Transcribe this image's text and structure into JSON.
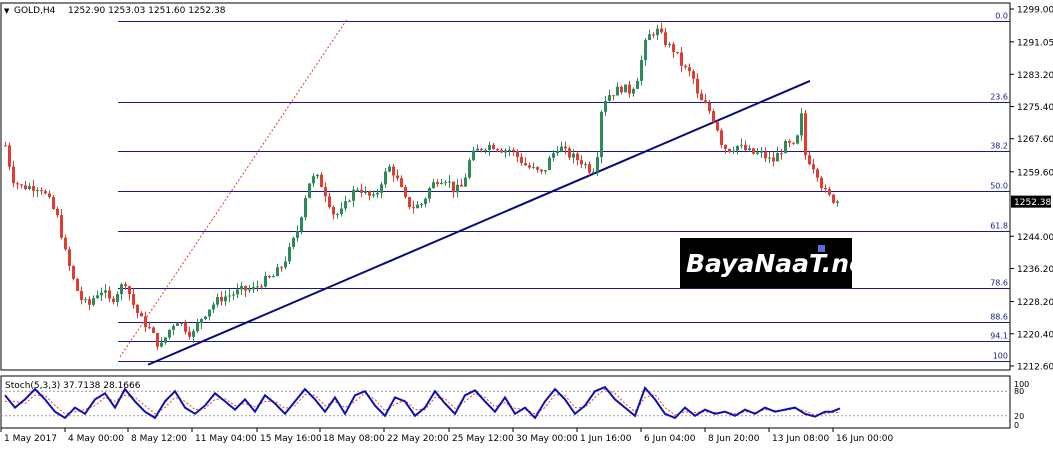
{
  "header": {
    "symbol": "GOLD,H4",
    "ohlc": "1252.90 1253.03 1251.60 1252.38"
  },
  "indicator": {
    "label": "Stoch(5,3,3) 37.7138 28.1666",
    "levels": [
      "100",
      "80",
      "20",
      "0"
    ]
  },
  "price_axis": {
    "ticks": [
      "1299.00",
      "1291.05",
      "1283.20",
      "1275.40",
      "1267.60",
      "1259.60",
      "1252.38",
      "1244.00",
      "1236.20",
      "1228.20",
      "1220.40",
      "1212.60"
    ],
    "current_price": "1252.38"
  },
  "time_axis": {
    "ticks": [
      "1 May 2017",
      "4 May 00:00",
      "8 May 12:00",
      "11 May 04:00",
      "15 May 16:00",
      "18 May 08:00",
      "22 May 20:00",
      "25 May 12:00",
      "30 May 00:00",
      "1 Jun 16:00",
      "6 Jun 04:00",
      "8 Jun 20:00",
      "13 Jun 08:00",
      "16 Jun 00:00"
    ]
  },
  "watermark": "BayaNaaT.net",
  "colors": {
    "bull": "#2e8b57",
    "bear": "#e03c31",
    "fib": "#1a1a8c",
    "trend": "#0a0a7a",
    "stoch_main": "#1010b0",
    "stoch_signal": "#e03c31"
  },
  "chart_data": {
    "type": "candlestick",
    "symbol": "GOLD",
    "timeframe": "H4",
    "fibonacci_levels": [
      {
        "label": "0.0",
        "price": 1296.0
      },
      {
        "label": "23.6",
        "price": 1276.6
      },
      {
        "label": "38.2",
        "price": 1264.6
      },
      {
        "label": "50.0",
        "price": 1254.9
      },
      {
        "label": "61.8",
        "price": 1245.2
      },
      {
        "label": "78.6",
        "price": 1231.4
      },
      {
        "label": "88.6",
        "price": 1223.2
      },
      {
        "label": "94.1",
        "price": 1218.7
      },
      {
        "label": "100",
        "price": 1213.8
      }
    ],
    "trendlines": [
      {
        "kind": "support",
        "from": [
          148,
          1212.9
        ],
        "to": [
          810,
          1281.6
        ]
      },
      {
        "kind": "projection",
        "style": "dashed",
        "from": [
          120,
          1214.8
        ],
        "to": [
          347,
          1296.5
        ]
      }
    ],
    "price_anchors": [
      1299.0,
      1212.6
    ],
    "close_path": [
      [
        5,
        1266
      ],
      [
        12,
        1258
      ],
      [
        20,
        1256
      ],
      [
        30,
        1256
      ],
      [
        40,
        1256
      ],
      [
        50,
        1252
      ],
      [
        58,
        1248
      ],
      [
        65,
        1240
      ],
      [
        72,
        1234
      ],
      [
        80,
        1229
      ],
      [
        88,
        1227
      ],
      [
        95,
        1230
      ],
      [
        102,
        1231
      ],
      [
        110,
        1228
      ],
      [
        118,
        1231
      ],
      [
        125,
        1233
      ],
      [
        132,
        1228
      ],
      [
        140,
        1224
      ],
      [
        148,
        1222
      ],
      [
        155,
        1219
      ],
      [
        160,
        1217
      ],
      [
        168,
        1221
      ],
      [
        176,
        1224
      ],
      [
        184,
        1222
      ],
      [
        192,
        1220
      ],
      [
        200,
        1224
      ],
      [
        210,
        1227
      ],
      [
        220,
        1229
      ],
      [
        232,
        1230
      ],
      [
        242,
        1231
      ],
      [
        252,
        1231
      ],
      [
        262,
        1233
      ],
      [
        272,
        1234
      ],
      [
        282,
        1237
      ],
      [
        290,
        1241
      ],
      [
        298,
        1246
      ],
      [
        304,
        1253
      ],
      [
        310,
        1258
      ],
      [
        318,
        1258
      ],
      [
        326,
        1254
      ],
      [
        334,
        1249
      ],
      [
        342,
        1250
      ],
      [
        350,
        1254
      ],
      [
        358,
        1256
      ],
      [
        366,
        1254
      ],
      [
        374,
        1253
      ],
      [
        382,
        1258
      ],
      [
        390,
        1261
      ],
      [
        398,
        1257
      ],
      [
        406,
        1252
      ],
      [
        414,
        1251
      ],
      [
        422,
        1252
      ],
      [
        430,
        1256
      ],
      [
        438,
        1258
      ],
      [
        446,
        1258
      ],
      [
        454,
        1255
      ],
      [
        462,
        1256
      ],
      [
        470,
        1263
      ],
      [
        478,
        1265
      ],
      [
        486,
        1266
      ],
      [
        494,
        1266
      ],
      [
        502,
        1265
      ],
      [
        510,
        1265
      ],
      [
        518,
        1263
      ],
      [
        526,
        1261
      ],
      [
        534,
        1260
      ],
      [
        542,
        1259
      ],
      [
        550,
        1263
      ],
      [
        558,
        1266
      ],
      [
        566,
        1264
      ],
      [
        574,
        1263
      ],
      [
        582,
        1262
      ],
      [
        590,
        1260
      ],
      [
        596,
        1261
      ],
      [
        600,
        1274
      ],
      [
        606,
        1278
      ],
      [
        614,
        1279
      ],
      [
        622,
        1280
      ],
      [
        630,
        1279
      ],
      [
        638,
        1283
      ],
      [
        644,
        1290
      ],
      [
        650,
        1293
      ],
      [
        656,
        1294
      ],
      [
        662,
        1292
      ],
      [
        668,
        1290
      ],
      [
        674,
        1289
      ],
      [
        680,
        1286
      ],
      [
        686,
        1284
      ],
      [
        692,
        1283
      ],
      [
        698,
        1277
      ],
      [
        704,
        1276
      ],
      [
        710,
        1274
      ],
      [
        716,
        1271
      ],
      [
        722,
        1266
      ],
      [
        728,
        1265
      ],
      [
        736,
        1266
      ],
      [
        744,
        1265
      ],
      [
        752,
        1264
      ],
      [
        760,
        1264
      ],
      [
        766,
        1263
      ],
      [
        772,
        1262
      ],
      [
        778,
        1264
      ],
      [
        784,
        1266
      ],
      [
        790,
        1266
      ],
      [
        796,
        1265
      ],
      [
        800,
        1276
      ],
      [
        804,
        1264
      ],
      [
        810,
        1262
      ],
      [
        816,
        1260
      ],
      [
        820,
        1257
      ],
      [
        826,
        1254
      ],
      [
        832,
        1253
      ],
      [
        840,
        1252.4
      ]
    ],
    "stochastic": {
      "params": "5,3,3",
      "main": 37.7138,
      "signal": 28.1666,
      "levels": [
        20,
        80
      ],
      "range": [
        0,
        100
      ],
      "main_path": [
        [
          5,
          70
        ],
        [
          15,
          40
        ],
        [
          25,
          60
        ],
        [
          35,
          85
        ],
        [
          45,
          60
        ],
        [
          55,
          30
        ],
        [
          65,
          15
        ],
        [
          75,
          40
        ],
        [
          85,
          25
        ],
        [
          95,
          60
        ],
        [
          105,
          75
        ],
        [
          115,
          40
        ],
        [
          125,
          85
        ],
        [
          135,
          55
        ],
        [
          145,
          30
        ],
        [
          155,
          15
        ],
        [
          165,
          55
        ],
        [
          175,
          80
        ],
        [
          185,
          40
        ],
        [
          195,
          25
        ],
        [
          205,
          45
        ],
        [
          215,
          75
        ],
        [
          225,
          55
        ],
        [
          235,
          35
        ],
        [
          245,
          60
        ],
        [
          255,
          30
        ],
        [
          265,
          70
        ],
        [
          275,
          50
        ],
        [
          285,
          25
        ],
        [
          295,
          55
        ],
        [
          305,
          85
        ],
        [
          315,
          60
        ],
        [
          325,
          30
        ],
        [
          335,
          65
        ],
        [
          345,
          25
        ],
        [
          355,
          70
        ],
        [
          365,
          80
        ],
        [
          375,
          45
        ],
        [
          385,
          20
        ],
        [
          395,
          65
        ],
        [
          405,
          55
        ],
        [
          415,
          20
        ],
        [
          425,
          40
        ],
        [
          435,
          80
        ],
        [
          445,
          50
        ],
        [
          455,
          25
        ],
        [
          465,
          70
        ],
        [
          475,
          82
        ],
        [
          485,
          55
        ],
        [
          495,
          30
        ],
        [
          505,
          65
        ],
        [
          515,
          25
        ],
        [
          525,
          40
        ],
        [
          535,
          15
        ],
        [
          545,
          55
        ],
        [
          555,
          85
        ],
        [
          565,
          60
        ],
        [
          575,
          25
        ],
        [
          585,
          45
        ],
        [
          595,
          80
        ],
        [
          605,
          90
        ],
        [
          615,
          60
        ],
        [
          625,
          40
        ],
        [
          635,
          20
        ],
        [
          645,
          88
        ],
        [
          655,
          60
        ],
        [
          665,
          25
        ],
        [
          675,
          15
        ],
        [
          685,
          40
        ],
        [
          695,
          20
        ],
        [
          705,
          35
        ],
        [
          715,
          25
        ],
        [
          725,
          30
        ],
        [
          735,
          20
        ],
        [
          745,
          35
        ],
        [
          755,
          25
        ],
        [
          765,
          40
        ],
        [
          775,
          30
        ],
        [
          785,
          35
        ],
        [
          795,
          40
        ],
        [
          805,
          25
        ],
        [
          815,
          18
        ],
        [
          825,
          30
        ],
        [
          832,
          30
        ],
        [
          840,
          38
        ]
      ],
      "signal_path": [
        [
          5,
          55
        ],
        [
          15,
          55
        ],
        [
          25,
          50
        ],
        [
          35,
          70
        ],
        [
          45,
          70
        ],
        [
          55,
          45
        ],
        [
          65,
          25
        ],
        [
          75,
          30
        ],
        [
          85,
          35
        ],
        [
          95,
          45
        ],
        [
          105,
          65
        ],
        [
          115,
          55
        ],
        [
          125,
          70
        ],
        [
          135,
          65
        ],
        [
          145,
          45
        ],
        [
          155,
          25
        ],
        [
          165,
          40
        ],
        [
          175,
          65
        ],
        [
          185,
          55
        ],
        [
          195,
          35
        ],
        [
          205,
          38
        ],
        [
          215,
          60
        ],
        [
          225,
          62
        ],
        [
          235,
          45
        ],
        [
          245,
          50
        ],
        [
          255,
          42
        ],
        [
          265,
          55
        ],
        [
          275,
          55
        ],
        [
          285,
          38
        ],
        [
          295,
          45
        ],
        [
          305,
          72
        ],
        [
          315,
          70
        ],
        [
          325,
          45
        ],
        [
          335,
          55
        ],
        [
          345,
          40
        ],
        [
          355,
          55
        ],
        [
          365,
          75
        ],
        [
          375,
          60
        ],
        [
          385,
          32
        ],
        [
          395,
          48
        ],
        [
          405,
          58
        ],
        [
          415,
          35
        ],
        [
          425,
          35
        ],
        [
          435,
          65
        ],
        [
          445,
          62
        ],
        [
          455,
          38
        ],
        [
          465,
          55
        ],
        [
          475,
          75
        ],
        [
          485,
          65
        ],
        [
          495,
          42
        ],
        [
          505,
          52
        ],
        [
          515,
          38
        ],
        [
          525,
          35
        ],
        [
          535,
          25
        ],
        [
          545,
          40
        ],
        [
          555,
          72
        ],
        [
          565,
          70
        ],
        [
          575,
          40
        ],
        [
          585,
          40
        ],
        [
          595,
          65
        ],
        [
          605,
          85
        ],
        [
          615,
          75
        ],
        [
          625,
          50
        ],
        [
          635,
          30
        ],
        [
          645,
          65
        ],
        [
          655,
          72
        ],
        [
          665,
          40
        ],
        [
          675,
          22
        ],
        [
          685,
          30
        ],
        [
          695,
          28
        ],
        [
          705,
          30
        ],
        [
          715,
          28
        ],
        [
          725,
          28
        ],
        [
          735,
          25
        ],
        [
          745,
          30
        ],
        [
          755,
          28
        ],
        [
          765,
          35
        ],
        [
          775,
          33
        ],
        [
          785,
          33
        ],
        [
          795,
          38
        ],
        [
          805,
          32
        ],
        [
          815,
          22
        ],
        [
          825,
          25
        ],
        [
          832,
          28
        ],
        [
          840,
          28
        ]
      ]
    }
  }
}
